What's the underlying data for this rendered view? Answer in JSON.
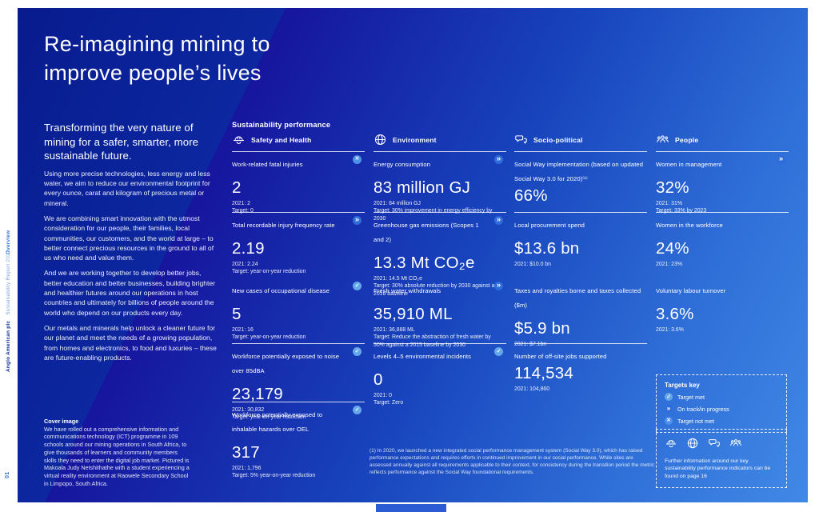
{
  "sidebar": {
    "section": "Overview",
    "brand_bold": "Anglo American plc",
    "brand_rest": "Sustainability Report 2022",
    "page_number": "01"
  },
  "hero": {
    "title_line1": "Re-imagining mining to",
    "title_line2": "improve people’s lives"
  },
  "intro": {
    "heading": "Transforming the very nature of mining for a safer, smarter, more sustainable future.",
    "paragraphs": [
      "Using more precise technologies, less energy and less water, we aim to reduce our environmental footprint for every ounce, carat and kilogram of precious metal or mineral.",
      "We are combining smart innovation with the utmost consideration for our people, their families, local communities, our customers, and the world at large – to better connect precious resources in the ground to all of us who need and value them.",
      "And we are working together to develop better jobs, better education and better businesses, building brighter and healthier futures around our operations in host countries and ultimately for billions of people around the world who depend on our products every day.",
      "Our metals and minerals help unlock a cleaner future for our planet and meet the needs of a growing population, from homes and electronics, to food and luxuries – these are future-enabling products."
    ],
    "cover_image_label": "Cover image",
    "cover_image_text": "We have rolled out a comprehensive information and communications technology (ICT) programme in 109 schools around our mining operations in South Africa, to give thousands of learners and community members skills they need to enter the digital job market. Pictured is Makoala Judy Netshithathe with a student experiencing a virtual reality environment at Raowele Secondary School in Limpopo, South Africa."
  },
  "kpi": {
    "section_title": "Sustainability performance",
    "columns": [
      {
        "name": "Safety and Health",
        "icon": "hard-hat-icon",
        "metrics": [
          {
            "label": "Work-related fatal injuries",
            "status": "not-met",
            "value": "2",
            "prior": "2021: 2",
            "target": "Target: 0"
          },
          {
            "label": "Total recordable injury frequency rate",
            "status": "on-track",
            "value": "2.19",
            "prior": "2021: 2.24",
            "target": "Target: year-on-year reduction"
          },
          {
            "label": "New cases of occupational disease",
            "status": "met",
            "value": "5",
            "prior": "2021: 16",
            "target": "Target: year-on-year reduction"
          },
          {
            "label": "Workforce potentially exposed to noise over 85dBA",
            "status": "met",
            "value": "23,179",
            "prior": "2021: 30,832",
            "target": "Target: year-on-year reduction"
          },
          {
            "label": "Workforce potentially exposed to inhalable hazards over OEL",
            "status": "met",
            "value": "317",
            "prior": "2021: 1,796",
            "target": "Target: 5% year-on-year reduction"
          }
        ]
      },
      {
        "name": "Environment",
        "icon": "globe-icon",
        "metrics": [
          {
            "label": "Energy consumption",
            "status": "on-track",
            "value": "83 million GJ",
            "prior": "2021: 84 million GJ",
            "target": "Target: 30% improvement in energy efficiency by 2030"
          },
          {
            "label": "Greenhouse gas emissions (Scopes 1 and 2)",
            "status": "on-track",
            "value": "13.3 Mt CO₂e",
            "prior": "2021: 14.5 Mt CO₂e",
            "target": "Target: 30% absolute reduction by 2030 against a 2016 baseline"
          },
          {
            "label": "Fresh water withdrawals",
            "status": "on-track",
            "value": "35,910 ML",
            "prior": "2021: 36,888 ML",
            "target": "Target: Reduce the abstraction of fresh water by 50% against a 2015 baseline by 2030"
          },
          {
            "label": "Levels 4–5 environmental incidents",
            "status": "met",
            "value": "0",
            "prior": "2021: 0",
            "target": "Target: Zero"
          }
        ]
      },
      {
        "name": "Socio-political",
        "icon": "speech-bubbles-icon",
        "metrics": [
          {
            "label": "Social Way implementation (based on updated Social Way 3.0 for 2020)⁽¹⁾",
            "status": null,
            "value": "66%",
            "prior": null,
            "target": null,
            "tight": true
          },
          {
            "label": "Local procurement spend",
            "status": null,
            "value": "$13.6 bn",
            "prior": "2021: $10.0 bn",
            "target": null
          },
          {
            "label": "Taxes and royalties borne and taxes collected ($m)",
            "status": null,
            "value": "$5.9 bn",
            "prior": "2021: $7.1bn",
            "target": null
          },
          {
            "label": "Number of off-site jobs supported",
            "status": null,
            "value": "114,534",
            "prior": "2021: 104,860",
            "target": null,
            "tight": true
          }
        ]
      },
      {
        "name": "People",
        "icon": "people-icon",
        "metrics": [
          {
            "label": "Women in management",
            "status": "on-track",
            "value": "32%",
            "prior": "2021: 31%",
            "target": "Target: 33% by 2023"
          },
          {
            "label": "Women in the workforce",
            "status": null,
            "value": "24%",
            "prior": "2021: 23%",
            "target": null
          },
          {
            "label": "Voluntary labour turnover",
            "status": null,
            "value": "3.6%",
            "prior": "2021: 3.6%",
            "target": null
          }
        ]
      }
    ]
  },
  "targets_key": {
    "title": "Targets key",
    "items": [
      {
        "status": "met",
        "label": "Target met"
      },
      {
        "status": "on-track",
        "label": "On track/in progress"
      },
      {
        "status": "not-met",
        "label": "Target not met"
      }
    ]
  },
  "further_info": {
    "icons": [
      "hard-hat-icon",
      "globe-icon",
      "speech-bubbles-icon",
      "people-icon"
    ],
    "text": "Further information around our key sustainability performance indicators can be found on page 16"
  },
  "footnote": "(1) In 2020, we launched a new integrated social performance management system (Social Way 3.0), which has raised performance expectations and requires efforts in continued improvement in our social performance. While sites are assessed annually against all requirements applicable to their context, for consistency during the transition period the metric reflects performance against the Social Way foundational requirements.",
  "colors": {
    "background_dark": "#081B8E",
    "background_light": "#4189E6",
    "status_met": "#64A7EA",
    "status_on_track": "#2E6CDB",
    "status_not_met": "#4C92EA",
    "sidebar_accent": "#2F6FD8"
  }
}
